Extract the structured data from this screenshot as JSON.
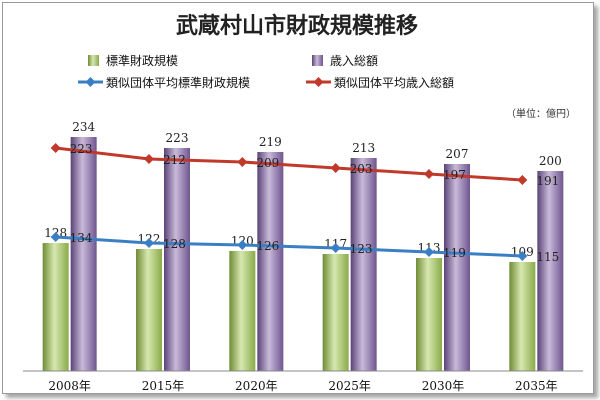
{
  "chart_data": {
    "type": "bar",
    "title": "武蔵村山市財政規模推移",
    "unit_note": "（単位：億円）",
    "categories": [
      "2008年",
      "2015年",
      "2020年",
      "2025年",
      "2030年",
      "2035年"
    ],
    "ylim": [
      0,
      260
    ],
    "grid": false,
    "legend_position": "top",
    "series": [
      {
        "name": "標準財政規模",
        "kind": "bar",
        "color": "#9bbb59",
        "values": [
          128,
          122,
          120,
          117,
          113,
          109
        ]
      },
      {
        "name": "歳入総額",
        "kind": "bar",
        "color": "#8064a2",
        "values": [
          234,
          223,
          219,
          213,
          207,
          200
        ]
      },
      {
        "name": "類似団体平均標準財政規模",
        "kind": "line",
        "color": "#3a7fc4",
        "values": [
          134,
          128,
          126,
          123,
          119,
          115
        ]
      },
      {
        "name": "類似団体平均歳入総額",
        "kind": "line",
        "color": "#c0392b",
        "values": [
          223,
          212,
          209,
          203,
          197,
          191
        ]
      }
    ]
  }
}
